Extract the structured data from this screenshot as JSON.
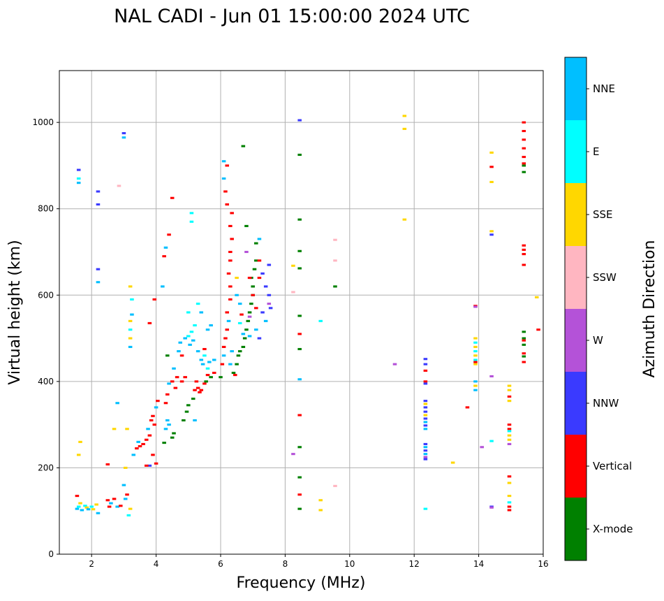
{
  "chart_data": {
    "type": "scatter",
    "title": "NAL CADI - Jun 01 15:00:00 2024 UTC",
    "xlabel": "Frequency (MHz)",
    "ylabel": "Virtual height (km)",
    "xlim": [
      1,
      16
    ],
    "ylim": [
      0,
      1120
    ],
    "xticks": [
      2,
      4,
      6,
      8,
      10,
      12,
      14,
      16
    ],
    "yticks": [
      0,
      200,
      400,
      600,
      800,
      1000
    ],
    "grid": true,
    "colorbar": {
      "label": "Azimuth Direction",
      "categories": [
        {
          "name": "X-mode",
          "color": "#008000"
        },
        {
          "name": "Vertical",
          "color": "#ff0000"
        },
        {
          "name": "NNW",
          "color": "#3a3aff"
        },
        {
          "name": "W",
          "color": "#b452d8"
        },
        {
          "name": "SSW",
          "color": "#ffb6c1"
        },
        {
          "name": "SSE",
          "color": "#ffd700"
        },
        {
          "name": "E",
          "color": "#00ffff"
        },
        {
          "name": "NNE",
          "color": "#00bfff"
        }
      ]
    },
    "cell": {
      "df": 0.12,
      "dh": 5
    },
    "points": [
      [
        "NNE",
        1.55,
        105
      ],
      [
        "E",
        1.6,
        110
      ],
      [
        "Vertical",
        1.55,
        135
      ],
      [
        "SSE",
        1.65,
        118
      ],
      [
        "NNE",
        1.7,
        102
      ],
      [
        "E",
        1.8,
        112
      ],
      [
        "SSE",
        1.85,
        108
      ],
      [
        "NNE",
        1.9,
        104
      ],
      [
        "E",
        2.0,
        110
      ],
      [
        "SSE",
        2.05,
        104
      ],
      [
        "NNE",
        1.6,
        860
      ],
      [
        "NNW",
        1.6,
        890
      ],
      [
        "E",
        1.6,
        870
      ],
      [
        "SSE",
        1.65,
        260
      ],
      [
        "SSE",
        1.6,
        230
      ],
      [
        "NNW",
        2.2,
        840
      ],
      [
        "NNW",
        2.2,
        810
      ],
      [
        "NNW",
        2.2,
        660
      ],
      [
        "NNE",
        2.2,
        630
      ],
      [
        "NNE",
        2.2,
        95
      ],
      [
        "SSE",
        2.15,
        115
      ],
      [
        "Vertical",
        2.5,
        125
      ],
      [
        "Vertical",
        2.55,
        110
      ],
      [
        "NNE",
        2.6,
        118
      ],
      [
        "Vertical",
        2.7,
        128
      ],
      [
        "Vertical",
        2.5,
        208
      ],
      [
        "SSE",
        2.7,
        290
      ],
      [
        "NNE",
        2.8,
        350
      ],
      [
        "NNE",
        2.8,
        110
      ],
      [
        "Vertical",
        2.9,
        112
      ],
      [
        "SSW",
        2.85,
        853
      ],
      [
        "NNW",
        3.0,
        975
      ],
      [
        "NNE",
        3.0,
        965
      ],
      [
        "NNE",
        3.05,
        128
      ],
      [
        "Vertical",
        3.1,
        138
      ],
      [
        "E",
        3.15,
        90
      ],
      [
        "SSE",
        3.2,
        105
      ],
      [
        "NNE",
        3.0,
        160
      ],
      [
        "SSE",
        3.05,
        200
      ],
      [
        "SSE",
        3.1,
        290
      ],
      [
        "NNE",
        3.2,
        480
      ],
      [
        "SSE",
        3.2,
        500
      ],
      [
        "E",
        3.2,
        520
      ],
      [
        "NNE",
        3.25,
        555
      ],
      [
        "SSE",
        3.2,
        540
      ],
      [
        "E",
        3.25,
        590
      ],
      [
        "SSE",
        3.2,
        620
      ],
      [
        "NNE",
        3.3,
        230
      ],
      [
        "Vertical",
        3.4,
        245
      ],
      [
        "NNE",
        3.45,
        260
      ],
      [
        "Vertical",
        3.5,
        250
      ],
      [
        "Vertical",
        3.6,
        255
      ],
      [
        "Vertical",
        3.7,
        265
      ],
      [
        "NNE",
        3.75,
        290
      ],
      [
        "Vertical",
        3.8,
        275
      ],
      [
        "Vertical",
        3.85,
        310
      ],
      [
        "Vertical",
        3.9,
        320
      ],
      [
        "Vertical",
        3.95,
        300
      ],
      [
        "NNE",
        4.0,
        340
      ],
      [
        "Vertical",
        4.05,
        355
      ],
      [
        "Vertical",
        3.9,
        230
      ],
      [
        "Vertical",
        4.0,
        210
      ],
      [
        "NNW",
        3.8,
        205
      ],
      [
        "Vertical",
        3.7,
        205
      ],
      [
        "Vertical",
        3.8,
        535
      ],
      [
        "Vertical",
        3.95,
        590
      ],
      [
        "X-mode",
        4.25,
        258
      ],
      [
        "NNE",
        4.3,
        290
      ],
      [
        "NNE",
        4.35,
        310
      ],
      [
        "NNE",
        4.4,
        300
      ],
      [
        "Vertical",
        4.3,
        350
      ],
      [
        "Vertical",
        4.35,
        370
      ],
      [
        "NNE",
        4.4,
        395
      ],
      [
        "Vertical",
        4.5,
        400
      ],
      [
        "NNE",
        4.55,
        430
      ],
      [
        "X-mode",
        4.5,
        270
      ],
      [
        "X-mode",
        4.55,
        280
      ],
      [
        "Vertical",
        4.6,
        385
      ],
      [
        "Vertical",
        4.65,
        410
      ],
      [
        "NNE",
        4.7,
        470
      ],
      [
        "NNE",
        4.75,
        490
      ],
      [
        "Vertical",
        4.8,
        460
      ],
      [
        "Vertical",
        4.8,
        400
      ],
      [
        "NNE",
        4.9,
        500
      ],
      [
        "Vertical",
        4.9,
        410
      ],
      [
        "E",
        5.0,
        505
      ],
      [
        "NNE",
        5.05,
        485
      ],
      [
        "E",
        5.1,
        515
      ],
      [
        "NNE",
        5.15,
        495
      ],
      [
        "E",
        5.2,
        530
      ],
      [
        "Vertical",
        5.2,
        380
      ],
      [
        "Vertical",
        5.25,
        400
      ],
      [
        "Vertical",
        5.3,
        385
      ],
      [
        "Vertical",
        5.35,
        375
      ],
      [
        "Vertical",
        5.4,
        380
      ],
      [
        "NNE",
        5.3,
        470
      ],
      [
        "NNE",
        5.4,
        450
      ],
      [
        "NNE",
        5.45,
        440
      ],
      [
        "E",
        5.5,
        460
      ],
      [
        "Vertical",
        5.5,
        395
      ],
      [
        "X-mode",
        5.55,
        400
      ],
      [
        "Vertical",
        5.6,
        415
      ],
      [
        "E",
        5.6,
        430
      ],
      [
        "NNE",
        5.65,
        445
      ],
      [
        "X-mode",
        5.7,
        410
      ],
      [
        "Vertical",
        5.8,
        420
      ],
      [
        "NNE",
        5.8,
        450
      ],
      [
        "X-mode",
        4.85,
        310
      ],
      [
        "X-mode",
        4.95,
        330
      ],
      [
        "X-mode",
        5.0,
        345
      ],
      [
        "X-mode",
        5.15,
        360
      ],
      [
        "NNE",
        4.2,
        620
      ],
      [
        "Vertical",
        4.25,
        690
      ],
      [
        "NNE",
        4.3,
        710
      ],
      [
        "Vertical",
        4.4,
        740
      ],
      [
        "Vertical",
        4.5,
        825
      ],
      [
        "E",
        5.1,
        790
      ],
      [
        "E",
        5.1,
        770
      ],
      [
        "E",
        5.0,
        560
      ],
      [
        "E",
        5.3,
        580
      ],
      [
        "NNE",
        5.2,
        310
      ],
      [
        "NNE",
        5.4,
        560
      ],
      [
        "NNE",
        5.6,
        520
      ],
      [
        "NNE",
        5.7,
        530
      ],
      [
        "X-mode",
        4.35,
        460
      ],
      [
        "Vertical",
        5.5,
        475
      ],
      [
        "X-mode",
        6.0,
        410
      ],
      [
        "Vertical",
        6.05,
        440
      ],
      [
        "NNE",
        6.1,
        460
      ],
      [
        "Vertical",
        6.1,
        480
      ],
      [
        "Vertical",
        6.15,
        500
      ],
      [
        "Vertical",
        6.2,
        520
      ],
      [
        "NNE",
        6.25,
        540
      ],
      [
        "Vertical",
        6.2,
        560
      ],
      [
        "Vertical",
        6.3,
        590
      ],
      [
        "Vertical",
        6.3,
        620
      ],
      [
        "Vertical",
        6.25,
        650
      ],
      [
        "Vertical",
        6.3,
        680
      ],
      [
        "Vertical",
        6.3,
        700
      ],
      [
        "Vertical",
        6.35,
        730
      ],
      [
        "Vertical",
        6.3,
        760
      ],
      [
        "Vertical",
        6.35,
        790
      ],
      [
        "Vertical",
        6.2,
        810
      ],
      [
        "Vertical",
        6.2,
        900
      ],
      [
        "NNE",
        6.1,
        870
      ],
      [
        "Vertical",
        6.15,
        840
      ],
      [
        "NNE",
        6.1,
        910
      ],
      [
        "X-mode",
        6.4,
        420
      ],
      [
        "X-mode",
        6.5,
        440
      ],
      [
        "X-mode",
        6.55,
        460
      ],
      [
        "X-mode",
        6.6,
        470
      ],
      [
        "X-mode",
        6.7,
        480
      ],
      [
        "X-mode",
        6.75,
        500
      ],
      [
        "X-mode",
        6.8,
        520
      ],
      [
        "X-mode",
        6.85,
        540
      ],
      [
        "X-mode",
        6.9,
        560
      ],
      [
        "X-mode",
        6.95,
        580
      ],
      [
        "X-mode",
        7.0,
        600
      ],
      [
        "X-mode",
        7.0,
        620
      ],
      [
        "X-mode",
        6.95,
        640
      ],
      [
        "X-mode",
        7.05,
        660
      ],
      [
        "X-mode",
        7.1,
        680
      ],
      [
        "X-mode",
        6.7,
        945
      ],
      [
        "X-mode",
        6.8,
        760
      ],
      [
        "Vertical",
        6.9,
        640
      ],
      [
        "Vertical",
        7.0,
        600
      ],
      [
        "Vertical",
        7.1,
        570
      ],
      [
        "Vertical",
        7.2,
        640
      ],
      [
        "Vertical",
        7.2,
        680
      ],
      [
        "NNW",
        7.3,
        650
      ],
      [
        "NNW",
        7.4,
        620
      ],
      [
        "NNW",
        7.5,
        600
      ],
      [
        "NNW",
        7.5,
        670
      ],
      [
        "W",
        7.5,
        580
      ],
      [
        "NNW",
        7.3,
        560
      ],
      [
        "NNE",
        7.1,
        520
      ],
      [
        "NNE",
        6.9,
        505
      ],
      [
        "NNE",
        6.7,
        510
      ],
      [
        "NNE",
        6.5,
        600
      ],
      [
        "E",
        6.6,
        535
      ],
      [
        "NNE",
        7.2,
        730
      ],
      [
        "X-mode",
        7.1,
        720
      ],
      [
        "NNE",
        6.3,
        440
      ],
      [
        "NNE",
        6.35,
        470
      ],
      [
        "Vertical",
        6.45,
        415
      ],
      [
        "NNE",
        6.6,
        580
      ],
      [
        "Vertical",
        6.65,
        555
      ],
      [
        "W",
        6.9,
        550
      ],
      [
        "NNE",
        7.4,
        540
      ],
      [
        "NNW",
        7.2,
        500
      ],
      [
        "NNW",
        7.55,
        570
      ],
      [
        "W",
        6.8,
        700
      ],
      [
        "SSE",
        6.5,
        640
      ],
      [
        "SSE",
        8.25,
        668
      ],
      [
        "SSW",
        8.25,
        607
      ],
      [
        "W",
        8.25,
        232
      ],
      [
        "NNW",
        8.45,
        1005
      ],
      [
        "X-mode",
        8.45,
        925
      ],
      [
        "X-mode",
        8.45,
        775
      ],
      [
        "X-mode",
        8.45,
        702
      ],
      [
        "X-mode",
        8.45,
        662
      ],
      [
        "X-mode",
        8.45,
        552
      ],
      [
        "Vertical",
        8.45,
        510
      ],
      [
        "X-mode",
        8.45,
        475
      ],
      [
        "NNE",
        8.45,
        405
      ],
      [
        "Vertical",
        8.45,
        322
      ],
      [
        "X-mode",
        8.45,
        248
      ],
      [
        "X-mode",
        8.45,
        178
      ],
      [
        "Vertical",
        8.45,
        138
      ],
      [
        "X-mode",
        8.45,
        105
      ],
      [
        "E",
        9.1,
        540
      ],
      [
        "SSE",
        9.1,
        125
      ],
      [
        "SSE",
        9.1,
        102
      ],
      [
        "SSW",
        9.55,
        728
      ],
      [
        "SSW",
        9.55,
        680
      ],
      [
        "X-mode",
        9.55,
        620
      ],
      [
        "SSW",
        9.55,
        158
      ],
      [
        "W",
        11.4,
        440
      ],
      [
        "SSE",
        11.7,
        1015
      ],
      [
        "SSE",
        11.7,
        985
      ],
      [
        "SSE",
        11.7,
        775
      ],
      [
        "NNW",
        12.35,
        452
      ],
      [
        "NNW",
        12.35,
        440
      ],
      [
        "Vertical",
        12.35,
        425
      ],
      [
        "Vertical",
        12.35,
        400
      ],
      [
        "NNW",
        12.35,
        395
      ],
      [
        "NNW",
        12.35,
        355
      ],
      [
        "SSE",
        12.35,
        348
      ],
      [
        "NNW",
        12.35,
        340
      ],
      [
        "NNW",
        12.35,
        330
      ],
      [
        "SSE",
        12.35,
        322
      ],
      [
        "NNW",
        12.35,
        314
      ],
      [
        "NNE",
        12.35,
        306
      ],
      [
        "NNW",
        12.35,
        298
      ],
      [
        "NNE",
        12.35,
        290
      ],
      [
        "NNW",
        12.35,
        255
      ],
      [
        "NNE",
        12.35,
        248
      ],
      [
        "NNW",
        12.35,
        240
      ],
      [
        "NNE",
        12.35,
        232
      ],
      [
        "W",
        12.35,
        225
      ],
      [
        "NNW",
        12.35,
        220
      ],
      [
        "E",
        12.35,
        105
      ],
      [
        "SSE",
        13.2,
        212
      ],
      [
        "Vertical",
        13.65,
        340
      ],
      [
        "SSE",
        13.9,
        500
      ],
      [
        "E",
        13.9,
        490
      ],
      [
        "SSE",
        13.9,
        480
      ],
      [
        "E",
        13.9,
        470
      ],
      [
        "SSE",
        13.9,
        460
      ],
      [
        "E",
        13.9,
        450
      ],
      [
        "SSE",
        13.9,
        440
      ],
      [
        "Vertical",
        13.9,
        445
      ],
      [
        "NNE",
        13.9,
        400
      ],
      [
        "SSE",
        13.9,
        390
      ],
      [
        "NNE",
        13.9,
        380
      ],
      [
        "Vertical",
        13.9,
        575
      ],
      [
        "W",
        13.9,
        573
      ],
      [
        "W",
        14.1,
        248
      ],
      [
        "E",
        14.4,
        262
      ],
      [
        "NNW",
        14.4,
        110
      ],
      [
        "W",
        14.4,
        108
      ],
      [
        "W",
        14.4,
        412
      ],
      [
        "NNW",
        14.4,
        740
      ],
      [
        "SSE",
        14.4,
        748
      ],
      [
        "SSE",
        14.4,
        930
      ],
      [
        "Vertical",
        14.4,
        897
      ],
      [
        "SSE",
        14.4,
        862
      ],
      [
        "Vertical",
        15.4,
        1000
      ],
      [
        "Vertical",
        15.4,
        980
      ],
      [
        "Vertical",
        15.4,
        960
      ],
      [
        "Vertical",
        15.4,
        940
      ],
      [
        "Vertical",
        15.4,
        920
      ],
      [
        "X-mode",
        15.4,
        900
      ],
      [
        "Vertical",
        15.4,
        905
      ],
      [
        "X-mode",
        15.4,
        885
      ],
      [
        "Vertical",
        15.4,
        715
      ],
      [
        "Vertical",
        15.4,
        705
      ],
      [
        "Vertical",
        15.4,
        695
      ],
      [
        "Vertical",
        15.4,
        670
      ],
      [
        "X-mode",
        15.4,
        515
      ],
      [
        "X-mode",
        15.4,
        500
      ],
      [
        "Vertical",
        15.4,
        495
      ],
      [
        "X-mode",
        15.4,
        485
      ],
      [
        "Vertical",
        15.4,
        465
      ],
      [
        "X-mode",
        15.4,
        458
      ],
      [
        "Vertical",
        15.4,
        445
      ],
      [
        "SSE",
        14.95,
        390
      ],
      [
        "SSE",
        14.95,
        380
      ],
      [
        "Vertical",
        14.95,
        365
      ],
      [
        "SSE",
        14.95,
        355
      ],
      [
        "Vertical",
        14.95,
        300
      ],
      [
        "Vertical",
        14.95,
        290
      ],
      [
        "E",
        14.95,
        285
      ],
      [
        "SSE",
        14.95,
        275
      ],
      [
        "SSE",
        14.95,
        265
      ],
      [
        "W",
        14.95,
        255
      ],
      [
        "Vertical",
        14.95,
        180
      ],
      [
        "SSE",
        14.95,
        165
      ],
      [
        "SSE",
        14.95,
        135
      ],
      [
        "E",
        14.95,
        120
      ],
      [
        "Vertical",
        14.95,
        110
      ],
      [
        "Vertical",
        14.95,
        102
      ],
      [
        "SSE",
        15.8,
        595
      ],
      [
        "Vertical",
        15.85,
        520
      ]
    ]
  }
}
